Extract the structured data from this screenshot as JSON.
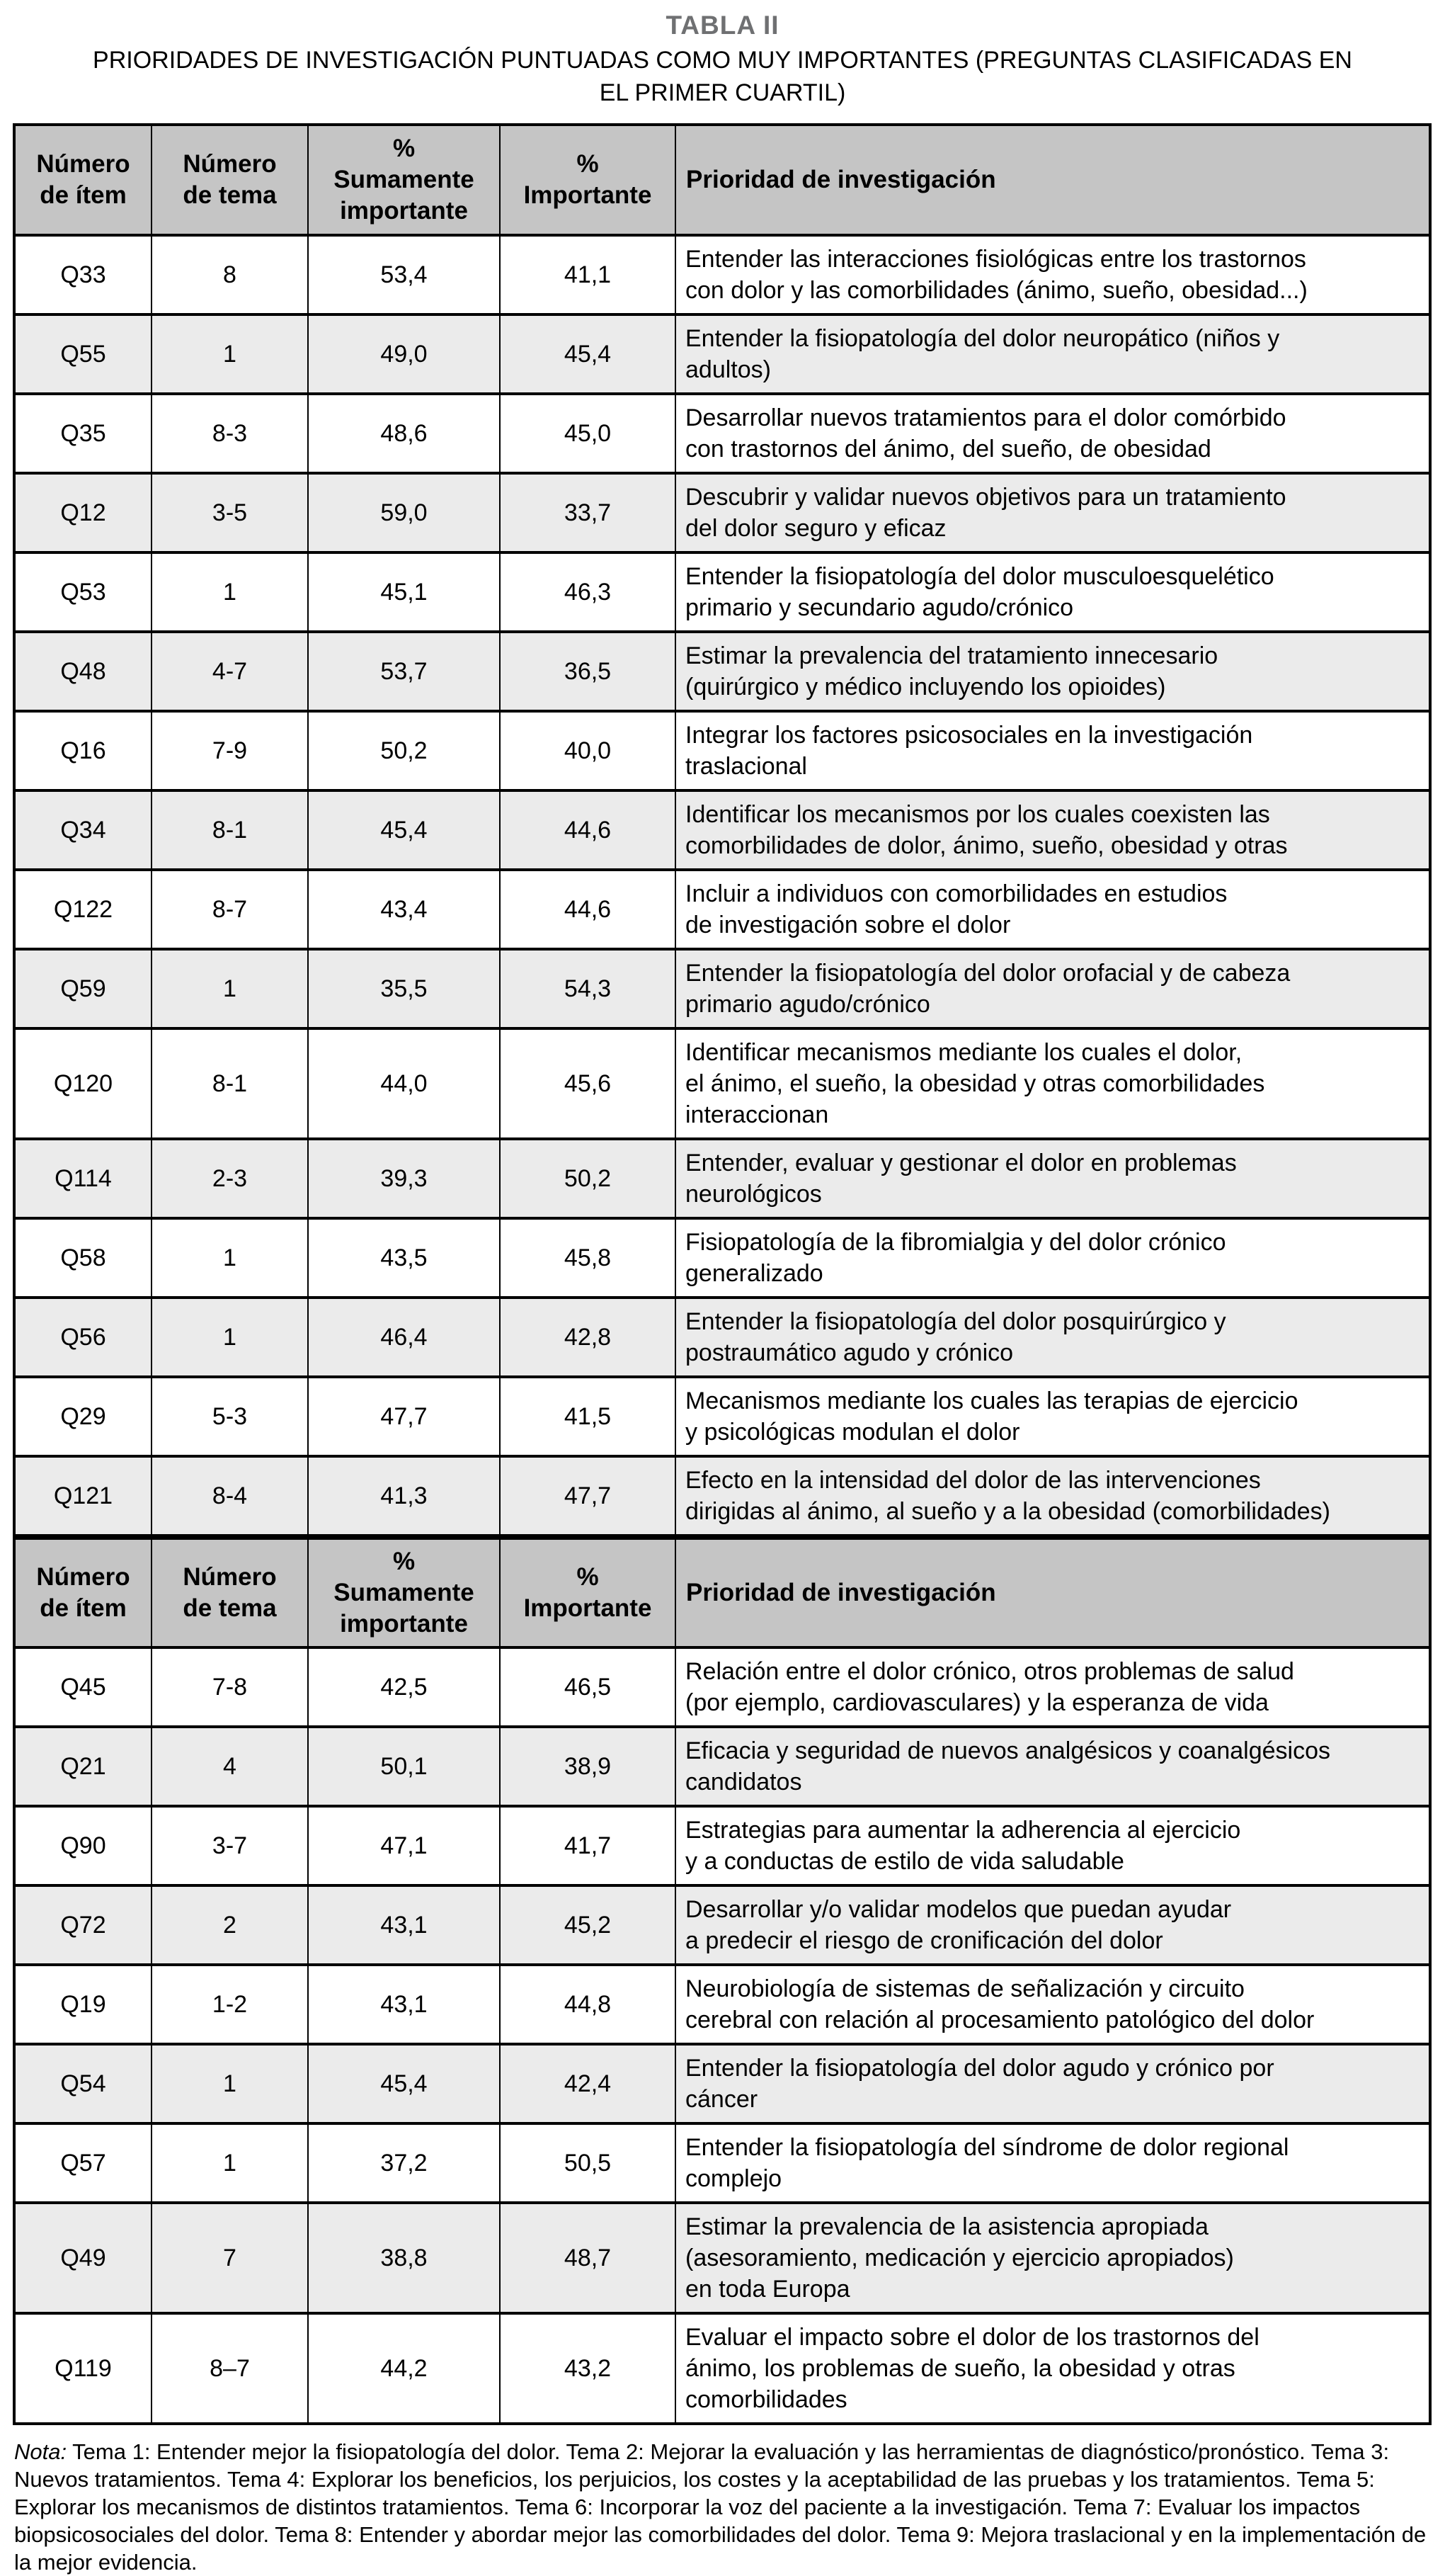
{
  "page": {
    "title": "TABLA II",
    "subtitle": "PRIORIDADES DE INVESTIGACIÓN PUNTUADAS COMO MUY IMPORTANTES (PREGUNTAS CLASIFICADAS EN\nEL PRIMER CUARTIL)"
  },
  "colors": {
    "header_bg": "#c5c5c5",
    "row_alt_bg": "#ebebeb",
    "border": "#000000",
    "title_color": "#6f7072"
  },
  "table": {
    "headers": {
      "item": "Número\nde ítem",
      "tema": "Número\nde tema",
      "sumamente": "%\nSumamente\nimportante",
      "importante": "%\nImportante",
      "prioridad": "Prioridad de investigación"
    },
    "sections": [
      {
        "rows": [
          {
            "item": "Q33",
            "tema": "8",
            "sumamente": "53,4",
            "importante": "41,1",
            "prioridad": "Entender las interacciones fisiológicas entre los trastornos\ncon dolor y las comorbilidades (ánimo, sueño, obesidad...)"
          },
          {
            "item": "Q55",
            "tema": "1",
            "sumamente": "49,0",
            "importante": "45,4",
            "prioridad": "Entender la fisiopatología del dolor neuropático (niños y\nadultos)"
          },
          {
            "item": "Q35",
            "tema": "8-3",
            "sumamente": "48,6",
            "importante": "45,0",
            "prioridad": "Desarrollar nuevos tratamientos para el dolor comórbido\ncon trastornos del ánimo, del sueño, de obesidad"
          },
          {
            "item": "Q12",
            "tema": "3-5",
            "sumamente": "59,0",
            "importante": "33,7",
            "prioridad": "Descubrir y validar nuevos objetivos para un tratamiento\ndel dolor seguro y eficaz"
          },
          {
            "item": "Q53",
            "tema": "1",
            "sumamente": "45,1",
            "importante": "46,3",
            "prioridad": "Entender la fisiopatología del dolor musculoesquelético\nprimario y secundario agudo/crónico"
          },
          {
            "item": "Q48",
            "tema": "4-7",
            "sumamente": "53,7",
            "importante": "36,5",
            "prioridad": "Estimar la prevalencia del tratamiento innecesario\n(quirúrgico y médico incluyendo los opioides)"
          },
          {
            "item": "Q16",
            "tema": "7-9",
            "sumamente": "50,2",
            "importante": "40,0",
            "prioridad": "Integrar los factores psicosociales en la investigación\ntraslacional"
          },
          {
            "item": "Q34",
            "tema": "8-1",
            "sumamente": "45,4",
            "importante": "44,6",
            "prioridad": "Identificar los mecanismos por los cuales coexisten las\ncomorbilidades de dolor, ánimo, sueño, obesidad y otras"
          },
          {
            "item": "Q122",
            "tema": "8-7",
            "sumamente": "43,4",
            "importante": "44,6",
            "prioridad": "Incluir a individuos con comorbilidades en estudios\nde investigación sobre el dolor"
          },
          {
            "item": "Q59",
            "tema": "1",
            "sumamente": "35,5",
            "importante": "54,3",
            "prioridad": "Entender la fisiopatología del dolor orofacial y de cabeza\nprimario agudo/crónico"
          },
          {
            "item": "Q120",
            "tema": "8-1",
            "sumamente": "44,0",
            "importante": "45,6",
            "prioridad": "Identificar mecanismos mediante los cuales el dolor,\nel ánimo, el sueño, la obesidad y otras comorbilidades\ninteraccionan"
          },
          {
            "item": "Q114",
            "tema": "2-3",
            "sumamente": "39,3",
            "importante": "50,2",
            "prioridad": "Entender, evaluar y gestionar el dolor en problemas\nneurológicos"
          },
          {
            "item": "Q58",
            "tema": "1",
            "sumamente": "43,5",
            "importante": "45,8",
            "prioridad": "Fisiopatología de la fibromialgia y del dolor crónico\ngeneralizado"
          },
          {
            "item": "Q56",
            "tema": "1",
            "sumamente": "46,4",
            "importante": "42,8",
            "prioridad": "Entender la fisiopatología del dolor posquirúrgico y\npostraumático agudo y crónico"
          },
          {
            "item": "Q29",
            "tema": "5-3",
            "sumamente": "47,7",
            "importante": "41,5",
            "prioridad": "Mecanismos mediante los cuales las terapias de ejercicio\ny psicológicas modulan el dolor"
          },
          {
            "item": "Q121",
            "tema": "8-4",
            "sumamente": "41,3",
            "importante": "47,7",
            "prioridad": "Efecto en la intensidad del dolor de las intervenciones\ndirigidas al ánimo, al sueño y a la obesidad (comorbilidades)"
          }
        ]
      },
      {
        "rows": [
          {
            "item": "Q45",
            "tema": "7-8",
            "sumamente": "42,5",
            "importante": "46,5",
            "prioridad": "Relación entre el dolor crónico, otros problemas de salud\n(por ejemplo, cardiovasculares) y la esperanza de vida"
          },
          {
            "item": "Q21",
            "tema": "4",
            "sumamente": "50,1",
            "importante": "38,9",
            "prioridad": "Eficacia y seguridad de nuevos analgésicos y coanalgésicos\ncandidatos"
          },
          {
            "item": "Q90",
            "tema": "3-7",
            "sumamente": "47,1",
            "importante": "41,7",
            "prioridad": "Estrategias para aumentar la adherencia al ejercicio\ny a conductas de estilo de vida saludable"
          },
          {
            "item": "Q72",
            "tema": "2",
            "sumamente": "43,1",
            "importante": "45,2",
            "prioridad": "Desarrollar y/o validar modelos que puedan ayudar\na predecir el riesgo de cronificación del dolor"
          },
          {
            "item": "Q19",
            "tema": "1-2",
            "sumamente": "43,1",
            "importante": "44,8",
            "prioridad": "Neurobiología de sistemas de señalización y circuito\ncerebral con relación al procesamiento patológico del dolor"
          },
          {
            "item": "Q54",
            "tema": "1",
            "sumamente": "45,4",
            "importante": "42,4",
            "prioridad": "Entender la fisiopatología del dolor agudo y crónico por\ncáncer"
          },
          {
            "item": "Q57",
            "tema": "1",
            "sumamente": "37,2",
            "importante": "50,5",
            "prioridad": "Entender la fisiopatología del síndrome de dolor regional\ncomplejo"
          },
          {
            "item": "Q49",
            "tema": "7",
            "sumamente": "38,8",
            "importante": "48,7",
            "prioridad": "Estimar la prevalencia de la asistencia apropiada\n(asesoramiento, medicación y ejercicio apropiados)\nen toda Europa"
          },
          {
            "item": "Q119",
            "tema": "8–7",
            "sumamente": "44,2",
            "importante": "43,2",
            "prioridad": "Evaluar el impacto sobre el dolor de los trastornos del\nánimo, los problemas de sueño, la obesidad y otras\ncomorbilidades"
          }
        ]
      }
    ]
  },
  "note": {
    "prefix": "Nota:",
    "text": "Tema 1: Entender mejor la fisiopatología del dolor. Tema 2: Mejorar la evaluación y las herramientas de diagnóstico/pronóstico. Tema 3: Nuevos tratamientos. Tema 4: Explorar los beneficios, los perjuicios, los costes y la aceptabilidad de las pruebas y los tratamientos. Tema 5: Explorar los mecanismos de distintos tratamientos. Tema 6: Incorporar la voz del paciente a la investigación. Tema 7: Evaluar los impactos biopsicosociales del dolor. Tema 8: Entender y abordar mejor las comorbilidades del dolor. Tema 9: Mejora traslacional y en la implementación de la mejor evidencia."
  }
}
